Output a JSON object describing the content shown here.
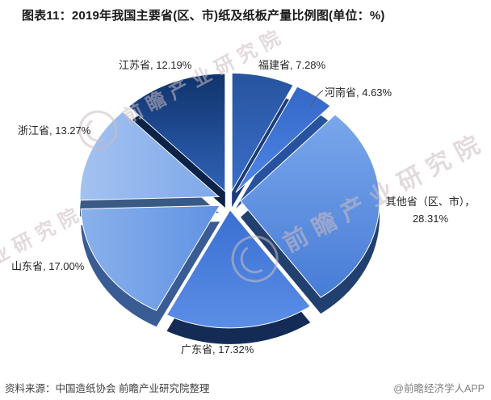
{
  "title": "图表11：2019年我国主要省(区、市)纸及纸板产量比例图(单位：%)",
  "chart_data": {
    "type": "pie",
    "title": "2019年我国主要省(区、市)纸及纸板产量比例图",
    "unit": "%",
    "direction": "clockwise",
    "start_angle_deg": 0,
    "legend_position": "none (labels around chart)",
    "style": "3d-exploded",
    "slices": [
      {
        "name": "福建省",
        "value": 7.28,
        "grad": "v",
        "color_a": "#27549f",
        "color_b": "#3a6ec9",
        "color_side": "#1a3c78"
      },
      {
        "name": "河南省",
        "value": 4.63,
        "grad": "v",
        "color_a": "#3367c8",
        "color_b": "#4f86e6",
        "color_side": "#27529f"
      },
      {
        "name": "其他省（区、市）",
        "value": 28.31,
        "grad": "v",
        "color_a": "#7aa7ec",
        "color_b": "#477cd6",
        "color_side": "#21406f"
      },
      {
        "name": "广东省",
        "value": 17.32,
        "grad": "v",
        "color_a": "#3a6fd2",
        "color_b": "#5b8ee6",
        "color_side": "#142c55"
      },
      {
        "name": "山东省",
        "value": 17.0,
        "grad": "h",
        "color_a": "#6092e3",
        "color_b": "#8ab1ec",
        "color_side": "#3a5c94"
      },
      {
        "name": "浙江省",
        "value": 13.27,
        "grad": "h",
        "color_a": "#7ea8e9",
        "color_b": "#a3c2f1",
        "color_side": "#3a5a86"
      },
      {
        "name": "江苏省",
        "value": 12.19,
        "grad": "v",
        "color_a": "#10336b",
        "color_b": "#2f63b8",
        "color_side": "#0c2348"
      }
    ]
  },
  "labels": {
    "jiangsu": "江苏省, 12.19%",
    "fujian": "福建省, 7.28%",
    "henan": "河南省, 4.63%",
    "zhejiang": "浙江省, 13.27%",
    "shandong": "山东省, 17.00%",
    "guangdong": "广东省, 17.32%",
    "other_line1": "其他省（区、市），",
    "other_line2": "28.31%"
  },
  "watermark": {
    "brand": "前瞻产业研究院"
  },
  "footer": {
    "source": "资料来源：中国造纸协会 前瞻产业研究院整理",
    "credit": "@前瞻经济学人APP"
  }
}
